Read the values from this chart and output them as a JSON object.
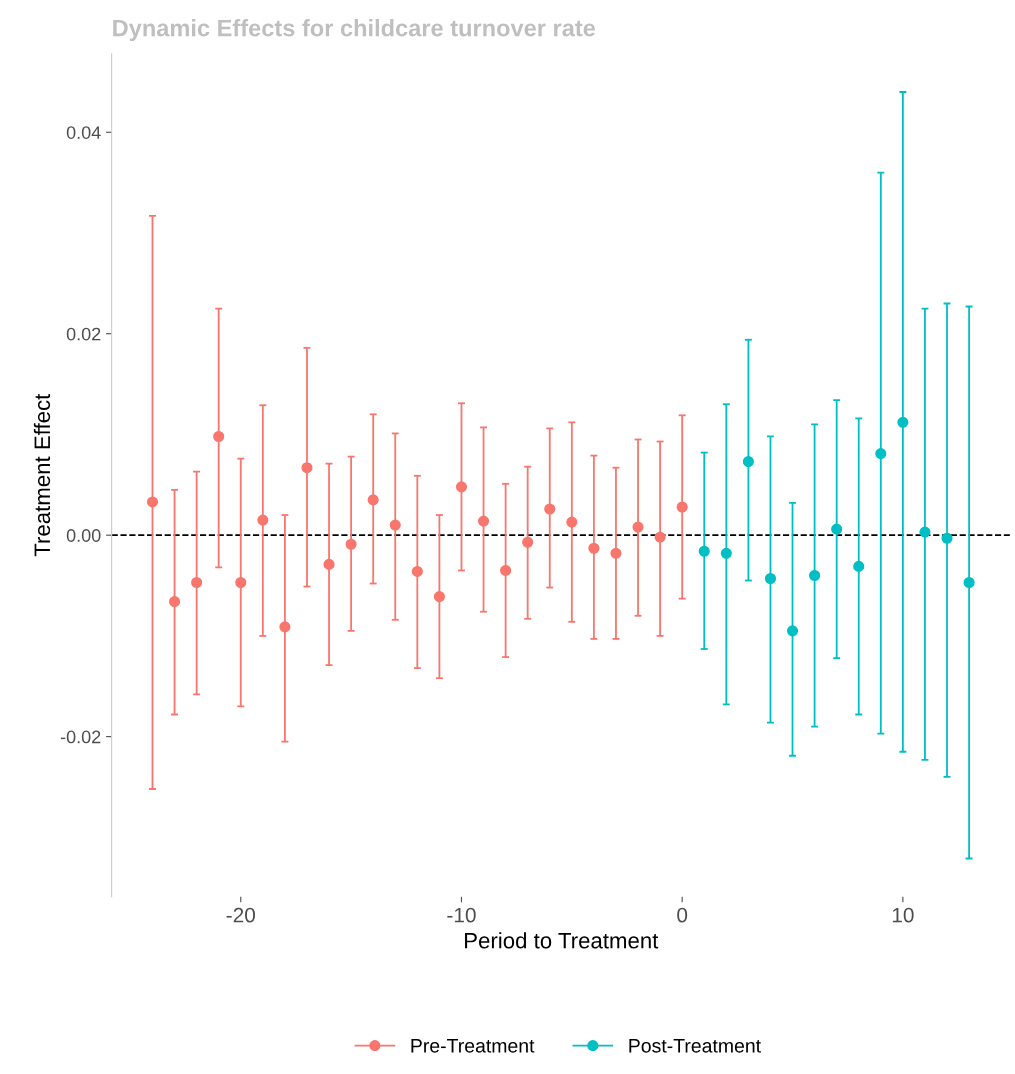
{
  "chart_data": {
    "type": "scatter",
    "title": "Dynamic Effects for childcare turnover rate",
    "xlabel": "Period to Treatment",
    "ylabel": "Treatment Effect",
    "series": [
      {
        "name": "Pre-Treatment",
        "color": "#f8766d",
        "x": [
          -24,
          -23,
          -22,
          -21,
          -20,
          -19,
          -18,
          -17,
          -16,
          -15,
          -14,
          -13,
          -12,
          -11,
          -10,
          -9,
          -8,
          -7,
          -6,
          -5,
          -4,
          -3,
          -2,
          -1,
          0
        ],
        "values": [
          0.0033,
          -0.0066,
          -0.0047,
          0.0098,
          -0.0047,
          0.0015,
          -0.0091,
          0.0067,
          -0.0029,
          -0.0009,
          0.0035,
          0.001,
          -0.0036,
          -0.0061,
          0.0048,
          0.0014,
          -0.0035,
          -0.0007,
          0.0026,
          0.0013,
          -0.0013,
          -0.0018,
          0.0008,
          -0.0002,
          0.0028
        ],
        "errors": [
          [
            -0.0252,
            0.0317
          ],
          [
            -0.0178,
            0.0045
          ],
          [
            -0.0158,
            0.0063
          ],
          [
            -0.0032,
            0.0225
          ],
          [
            -0.017,
            0.0076
          ],
          [
            -0.01,
            0.0129
          ],
          [
            -0.0205,
            0.002
          ],
          [
            -0.0051,
            0.0186
          ],
          [
            -0.0129,
            0.0071
          ],
          [
            -0.0095,
            0.0078
          ],
          [
            -0.0048,
            0.012
          ],
          [
            -0.0084,
            0.0101
          ],
          [
            -0.0132,
            0.0059
          ],
          [
            -0.0142,
            0.002
          ],
          [
            -0.0035,
            0.0131
          ],
          [
            -0.0076,
            0.0107
          ],
          [
            -0.0121,
            0.0051
          ],
          [
            -0.0083,
            0.0068
          ],
          [
            -0.0052,
            0.0106
          ],
          [
            -0.0086,
            0.0112
          ],
          [
            -0.0103,
            0.0079
          ],
          [
            -0.0103,
            0.0067
          ],
          [
            -0.008,
            0.0095
          ],
          [
            -0.01,
            0.0093
          ],
          [
            -0.0063,
            0.0119
          ]
        ]
      },
      {
        "name": "Post-Treatment",
        "color": "#00bfc4",
        "x": [
          1,
          2,
          3,
          4,
          5,
          6,
          7,
          8,
          9,
          10,
          11,
          12,
          13
        ],
        "values": [
          -0.0016,
          -0.0018,
          0.0073,
          -0.0043,
          -0.0095,
          -0.004,
          0.0006,
          -0.0031,
          0.0081,
          0.0112,
          0.0003,
          -0.0003,
          -0.0047
        ],
        "errors": [
          [
            -0.0113,
            0.0082
          ],
          [
            -0.0168,
            0.013
          ],
          [
            -0.0045,
            0.0194
          ],
          [
            -0.0186,
            0.0098
          ],
          [
            -0.0219,
            0.0032
          ],
          [
            -0.019,
            0.011
          ],
          [
            -0.0122,
            0.0134
          ],
          [
            -0.0178,
            0.0116
          ],
          [
            -0.0197,
            0.036
          ],
          [
            -0.0215,
            0.044
          ],
          [
            -0.0223,
            0.0225
          ],
          [
            -0.024,
            0.023
          ],
          [
            -0.0321,
            0.0227
          ]
        ]
      }
    ],
    "xlim": [
      -25.85,
      14.85
    ],
    "xticks": [
      -20,
      -10,
      0,
      10
    ],
    "ylim": [
      -0.0359,
      0.0478
    ],
    "yticks": [
      {
        "value": -0.02,
        "label": "-0.02"
      },
      {
        "value": 0.0,
        "label": "0.00"
      },
      {
        "value": 0.02,
        "label": "0.02"
      },
      {
        "value": 0.04,
        "label": "0.04"
      }
    ],
    "ref_lines": [
      {
        "axis": "y",
        "value": 0,
        "label": null,
        "color": "#000000",
        "line_style": "dashed"
      }
    ],
    "grid": false,
    "legend": "bottom",
    "marker": "circle"
  }
}
